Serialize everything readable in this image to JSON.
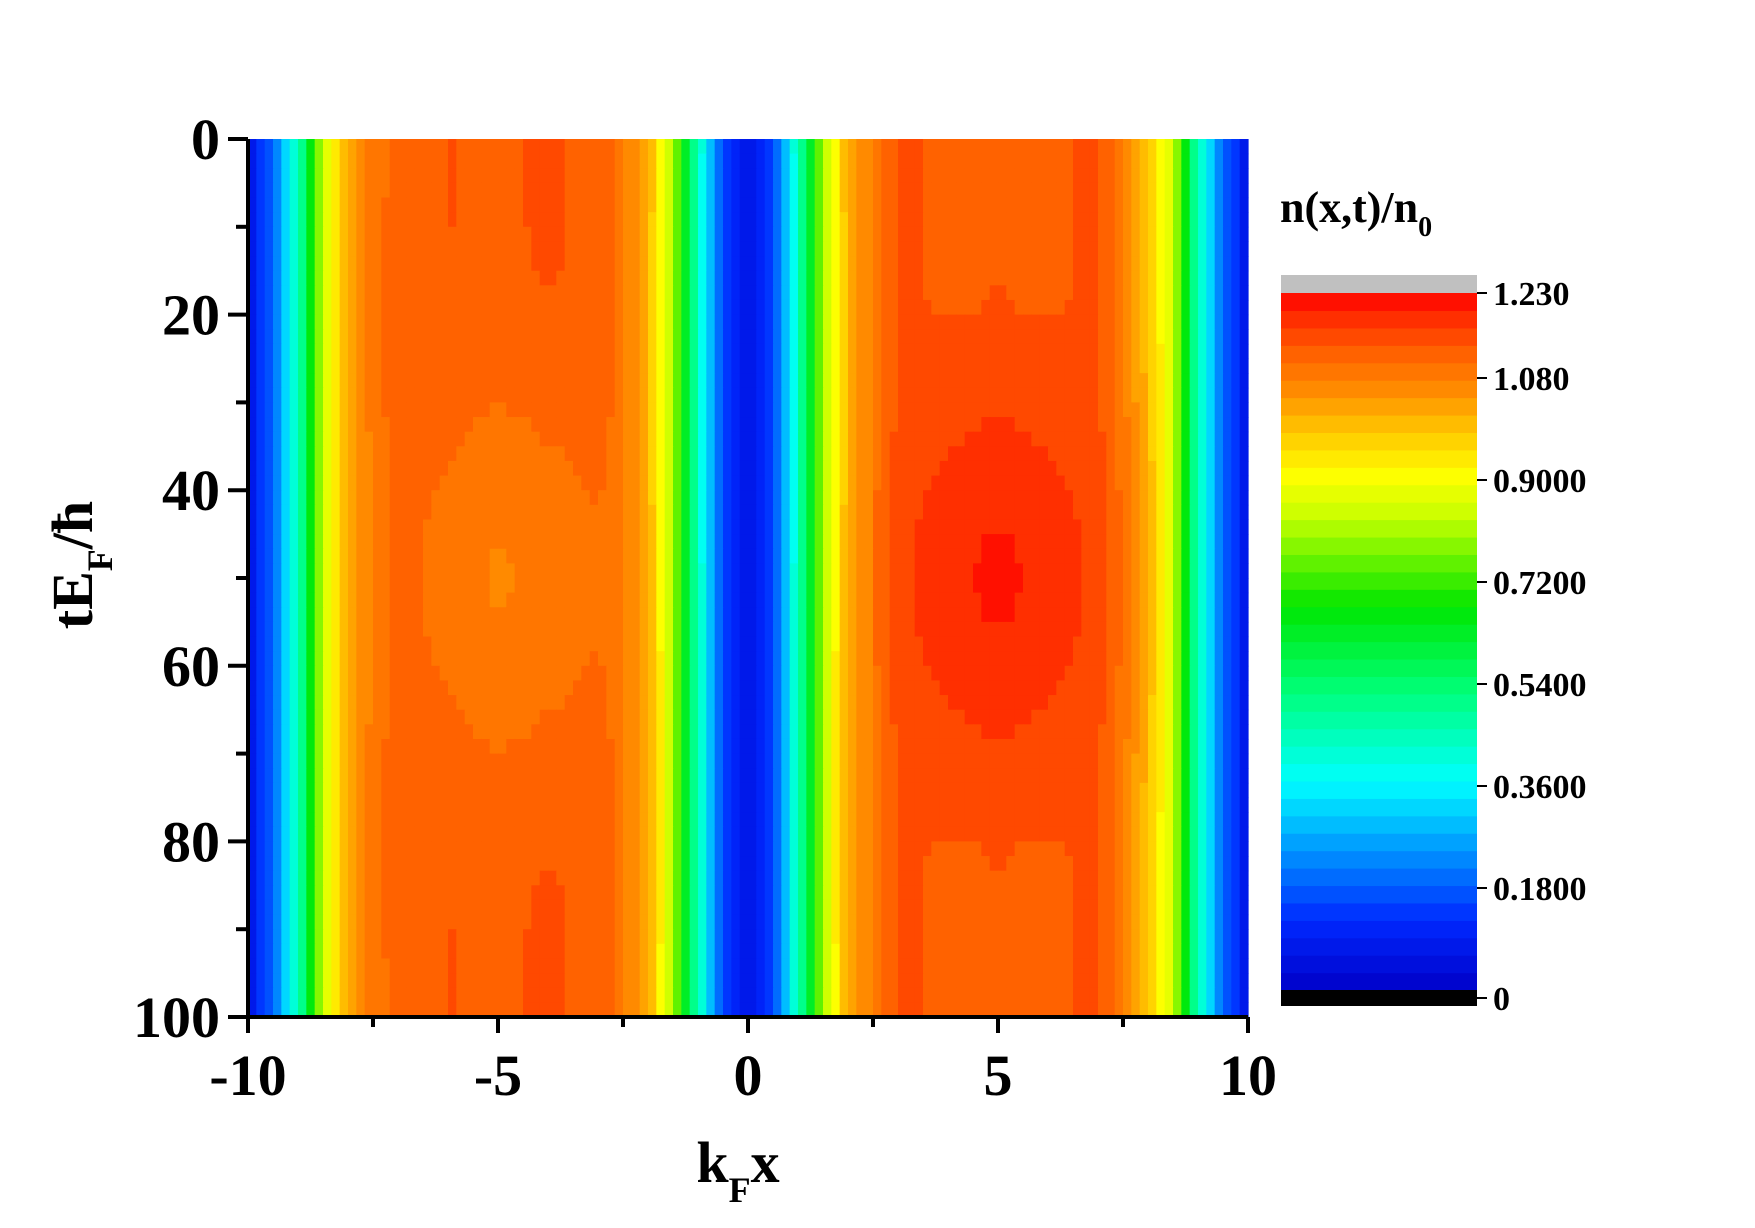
{
  "chart_data": {
    "type": "heatmap",
    "title": "",
    "xlabel": {
      "main": "k",
      "sub": "F",
      "tail": "x"
    },
    "ylabel": {
      "main": "tE",
      "sub": "F",
      "tail": "/ħ"
    },
    "colorbar_title": {
      "main": "n(x,t)/n",
      "sub": "0"
    },
    "xlim": [
      -10,
      10
    ],
    "ylim": [
      0,
      100
    ],
    "y_inverted": true,
    "x_ticks": [
      -10,
      -5,
      0,
      5,
      10
    ],
    "x_tick_labels": [
      "-10",
      "-5",
      "0",
      "5",
      "10"
    ],
    "y_ticks": [
      0,
      20,
      40,
      60,
      80,
      100
    ],
    "y_tick_labels": [
      "0",
      "20",
      "40",
      "60",
      "80",
      "100"
    ],
    "colorbar": {
      "min": 0,
      "max": 1.23,
      "levels": 40,
      "ticks": [
        1.23,
        1.08,
        0.9,
        0.72,
        0.54,
        0.36,
        0.18,
        0
      ],
      "tick_labels": [
        "1.230",
        "1.080",
        "0.9000",
        "0.7200",
        "0.5400",
        "0.3600",
        "0.1800",
        "0"
      ],
      "over_color": "#c0c0c0",
      "under_color": "#000000"
    },
    "density_profile": {
      "x": [
        -10,
        -9.5,
        -9,
        -8.5,
        -8,
        -7.5,
        -7,
        -6,
        -5,
        -4,
        -3,
        -2.5,
        -2,
        -1.5,
        -1,
        -0.5,
        0,
        0.5,
        1,
        1.5,
        2,
        2.5,
        3,
        4,
        5,
        6,
        7,
        7.5,
        8,
        8.5,
        9,
        9.5,
        10
      ],
      "n": [
        0.05,
        0.2,
        0.45,
        0.85,
        1.02,
        1.08,
        1.11,
        1.12,
        1.11,
        1.12,
        1.11,
        1.08,
        1.02,
        0.82,
        0.45,
        0.15,
        0.05,
        0.15,
        0.45,
        0.82,
        1.02,
        1.08,
        1.13,
        1.15,
        1.16,
        1.15,
        1.13,
        1.08,
        1.0,
        0.85,
        0.45,
        0.2,
        0.05
      ]
    },
    "modulation": {
      "left_lobe_amplitude": 0.05,
      "right_lobe_amplitude": 0.06,
      "period_t": 100,
      "left_lobe_peak_t": 50,
      "right_lobe_trough_t": 50
    },
    "colors": {
      "axis": "#000000",
      "background": "#ffffff"
    }
  }
}
